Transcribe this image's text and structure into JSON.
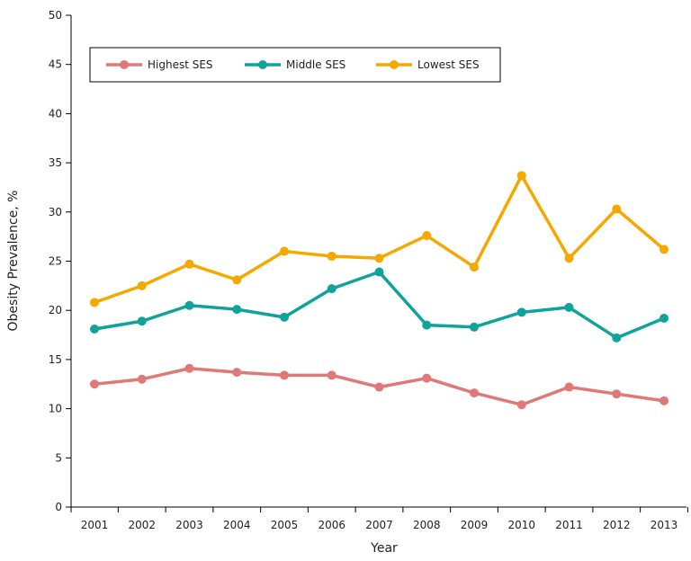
{
  "chart_data": {
    "type": "line",
    "title": "",
    "xlabel": "Year",
    "ylabel": "Obesity Prevalence, %",
    "ylim": [
      0,
      50
    ],
    "yticks": [
      0,
      5,
      10,
      15,
      20,
      25,
      30,
      35,
      40,
      45,
      50
    ],
    "grid": false,
    "legend_position": "top-left",
    "categories": [
      "2001",
      "2002",
      "2003",
      "2004",
      "2005",
      "2006",
      "2007",
      "2008",
      "2009",
      "2010",
      "2011",
      "2012",
      "2013"
    ],
    "series": [
      {
        "name": "Highest SES",
        "color": "#E07878",
        "values": [
          12.5,
          13.0,
          14.1,
          13.7,
          13.4,
          13.4,
          12.2,
          13.1,
          11.6,
          10.4,
          12.2,
          11.5,
          10.8
        ]
      },
      {
        "name": "Middle SES",
        "color": "#0FA39A",
        "values": [
          18.1,
          18.9,
          20.5,
          20.1,
          19.3,
          22.2,
          23.9,
          18.5,
          18.3,
          19.8,
          20.3,
          17.2,
          19.2
        ]
      },
      {
        "name": "Lowest SES",
        "color": "#F5A800",
        "values": [
          20.8,
          22.5,
          24.7,
          23.1,
          26.0,
          25.5,
          25.3,
          27.6,
          24.4,
          33.7,
          25.3,
          30.3,
          26.2
        ]
      }
    ]
  }
}
